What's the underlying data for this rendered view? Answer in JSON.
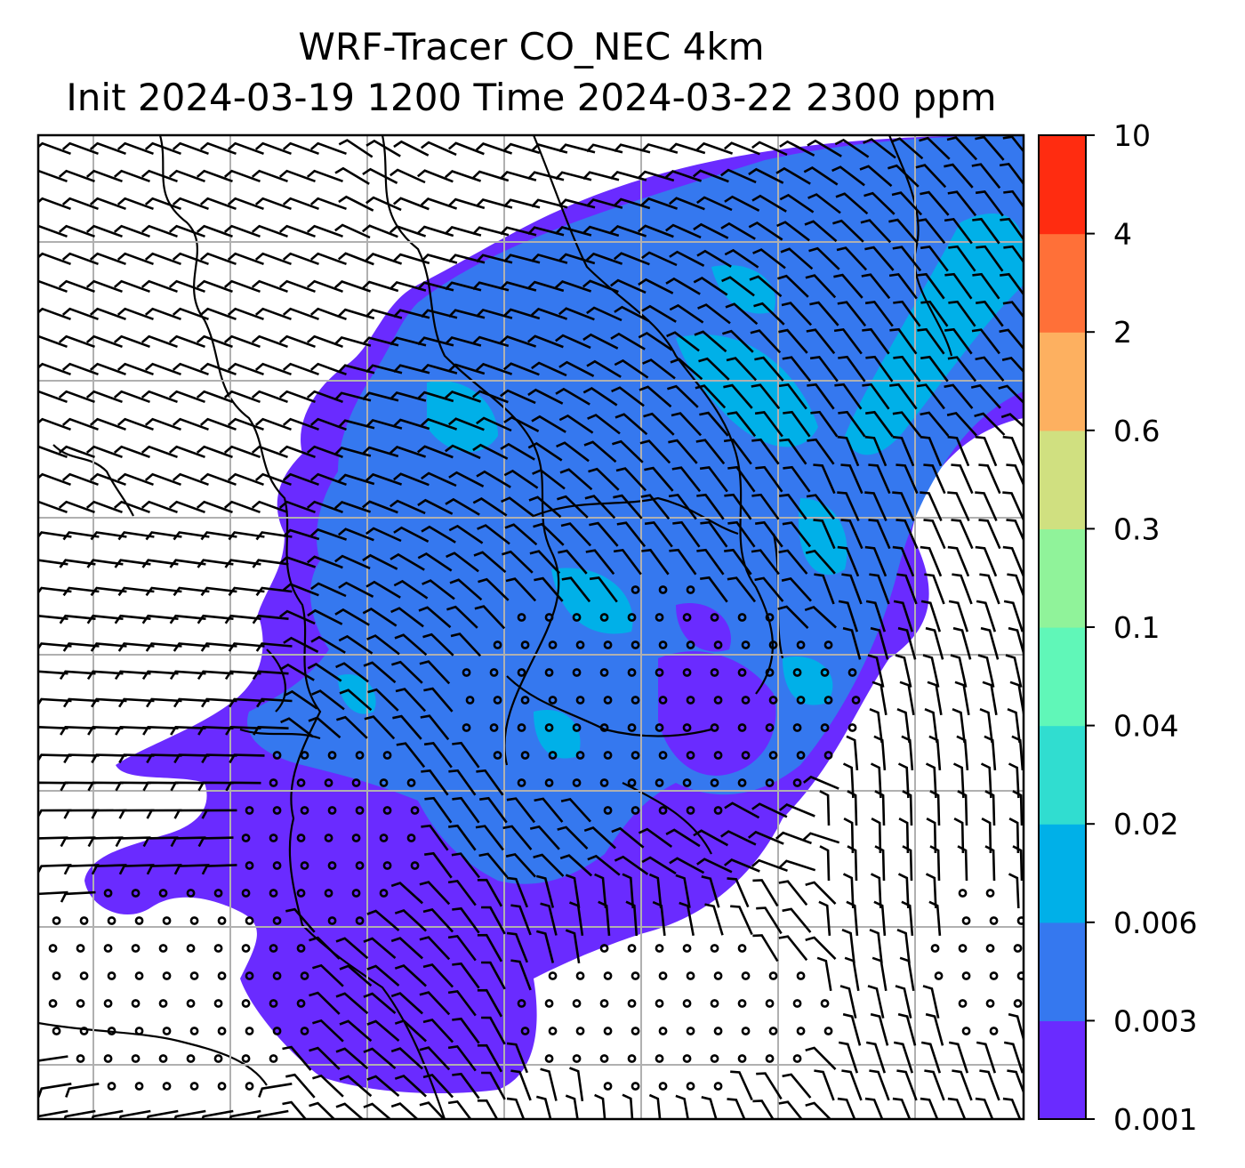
{
  "title": {
    "line1": "WRF-Tracer CO_NEC 4km",
    "line2": "Init 2024-03-19 1200 Time 2024-03-22 2300 ppm"
  },
  "colorbar": {
    "levels": [
      "0.001",
      "0.003",
      "0.006",
      "0.02",
      "0.04",
      "0.1",
      "0.3",
      "0.6",
      "2",
      "4",
      "10"
    ],
    "colors": [
      "#6a2bff",
      "#3578ef",
      "#00b0e8",
      "#30ddd0",
      "#60f7b8",
      "#90f39a",
      "#d0e080",
      "#fdb060",
      "#ff7038",
      "#ff2c10"
    ]
  },
  "map": {
    "field": "CO_NEC tracer concentration (ppm)",
    "overlay": "wind barbs",
    "background_color": "#ffffff",
    "gridline_color": "#b0b0b0"
  }
}
